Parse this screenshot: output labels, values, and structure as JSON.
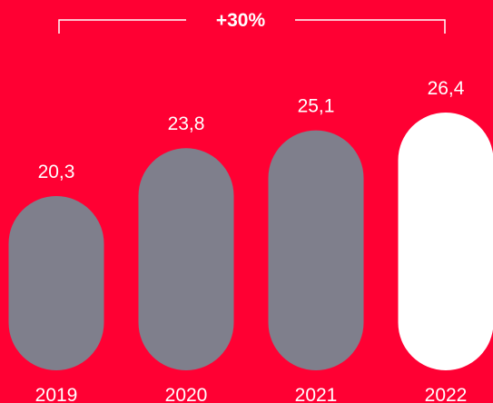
{
  "chart_data": {
    "type": "bar",
    "categories": [
      "2019",
      "2020",
      "2021",
      "2022"
    ],
    "values": [
      20.3,
      23.8,
      25.1,
      26.4
    ],
    "value_labels": [
      "20,3",
      "23,8",
      "25,1",
      "26,4"
    ],
    "annotation": "+30%",
    "title": "",
    "xlabel": "",
    "ylabel": ""
  },
  "colors": {
    "background": "#FF0033",
    "bar_default": "#7F7F8C",
    "bar_highlight": "#FFFFFF",
    "text": "#FFFFFF"
  },
  "highlight_index": 3
}
